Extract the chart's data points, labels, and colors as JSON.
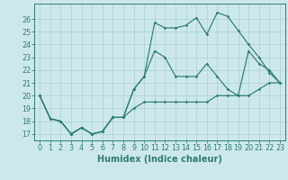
{
  "xlabel": "Humidex (Indice chaleur)",
  "bg_color": "#cde8ec",
  "grid_color": "#afd4d8",
  "line_color": "#2e7d72",
  "x_values": [
    0,
    1,
    2,
    3,
    4,
    5,
    6,
    7,
    8,
    9,
    10,
    11,
    12,
    13,
    14,
    15,
    16,
    17,
    18,
    19,
    20,
    21,
    22,
    23
  ],
  "line1": [
    20,
    18.2,
    18.0,
    17.0,
    17.5,
    17.0,
    17.2,
    18.3,
    18.3,
    20.5,
    21.5,
    25.7,
    25.3,
    25.3,
    25.5,
    26.1,
    24.8,
    26.5,
    26.2,
    25.1,
    24.0,
    23.0,
    21.8,
    21.0
  ],
  "line2": [
    20,
    18.2,
    18.0,
    17.0,
    17.5,
    17.0,
    17.2,
    18.3,
    18.3,
    20.5,
    21.5,
    23.5,
    23.0,
    21.5,
    21.5,
    21.5,
    22.5,
    21.5,
    20.5,
    20.0,
    23.5,
    22.5,
    22.0,
    21.0
  ],
  "line3": [
    20,
    18.2,
    18.0,
    17.0,
    17.5,
    17.0,
    17.2,
    18.3,
    18.3,
    19.0,
    19.5,
    19.5,
    19.5,
    19.5,
    19.5,
    19.5,
    19.5,
    20.0,
    20.0,
    20.0,
    20.0,
    20.5,
    21.0,
    21.0
  ],
  "ylim": [
    16.5,
    27.2
  ],
  "xlim": [
    -0.5,
    23.5
  ],
  "yticks": [
    17,
    18,
    19,
    20,
    21,
    22,
    23,
    24,
    25,
    26
  ],
  "xticks": [
    0,
    1,
    2,
    3,
    4,
    5,
    6,
    7,
    8,
    9,
    10,
    11,
    12,
    13,
    14,
    15,
    16,
    17,
    18,
    19,
    20,
    21,
    22,
    23
  ],
  "tick_fontsize": 5.8,
  "label_fontsize": 7.0
}
